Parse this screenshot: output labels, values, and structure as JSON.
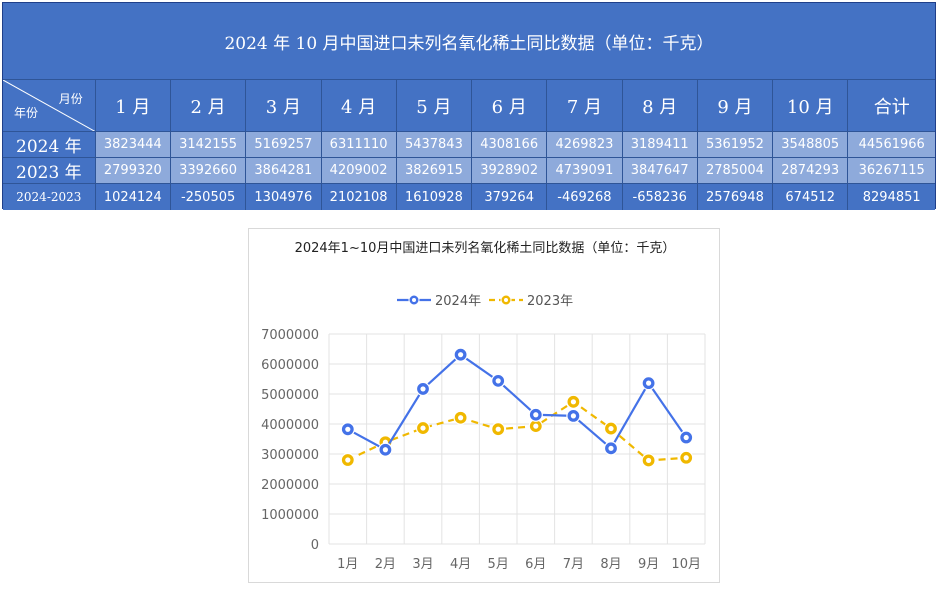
{
  "table": {
    "title": "2024 年 10 月中国进口未列名氧化稀土同比数据（单位：千克）",
    "corner_month": "月份",
    "corner_year": "年份",
    "months": [
      "1 月",
      "2 月",
      "3 月",
      "4 月",
      "5 月",
      "6 月",
      "7 月",
      "8 月",
      "9 月",
      "10 月"
    ],
    "total_label": "合计",
    "rows": [
      {
        "label": "2024 年",
        "values": [
          "3823444",
          "3142155",
          "5169257",
          "6311110",
          "5437843",
          "4308166",
          "4269823",
          "3189411",
          "5361952",
          "3548805"
        ],
        "total": "44561966"
      },
      {
        "label": "2023 年",
        "values": [
          "2799320",
          "3392660",
          "3864281",
          "4209002",
          "3826915",
          "3928902",
          "4739091",
          "3847647",
          "2785004",
          "2874293"
        ],
        "total": "36267115"
      },
      {
        "label": "2024-2023",
        "values": [
          "1024124",
          "-250505",
          "1304976",
          "2102108",
          "1610928",
          "379264",
          "-469268",
          "-658236",
          "2576948",
          "674512"
        ],
        "total": "8294851"
      }
    ]
  },
  "chart_data": {
    "type": "line",
    "title": "2024年1~10月中国进口未列名氧化稀土同比数据（单位：千克）",
    "categories": [
      "1月",
      "2月",
      "3月",
      "4月",
      "5月",
      "6月",
      "7月",
      "8月",
      "9月",
      "10月"
    ],
    "series": [
      {
        "name": "2024年",
        "color": "#4472e8",
        "style": "solid",
        "values": [
          3823444,
          3142155,
          5169257,
          6311110,
          5437843,
          4308166,
          4269823,
          3189411,
          5361952,
          3548805
        ]
      },
      {
        "name": "2023年",
        "color": "#f0b800",
        "style": "dashed",
        "values": [
          2799320,
          3392660,
          3864281,
          4209002,
          3826915,
          3928902,
          4739091,
          3847647,
          2785004,
          2874293
        ]
      }
    ],
    "ylim": [
      0,
      7000000
    ],
    "yticks": [
      "0",
      "1000000",
      "2000000",
      "3000000",
      "4000000",
      "5000000",
      "6000000",
      "7000000"
    ],
    "grid": true,
    "legend": "top"
  }
}
